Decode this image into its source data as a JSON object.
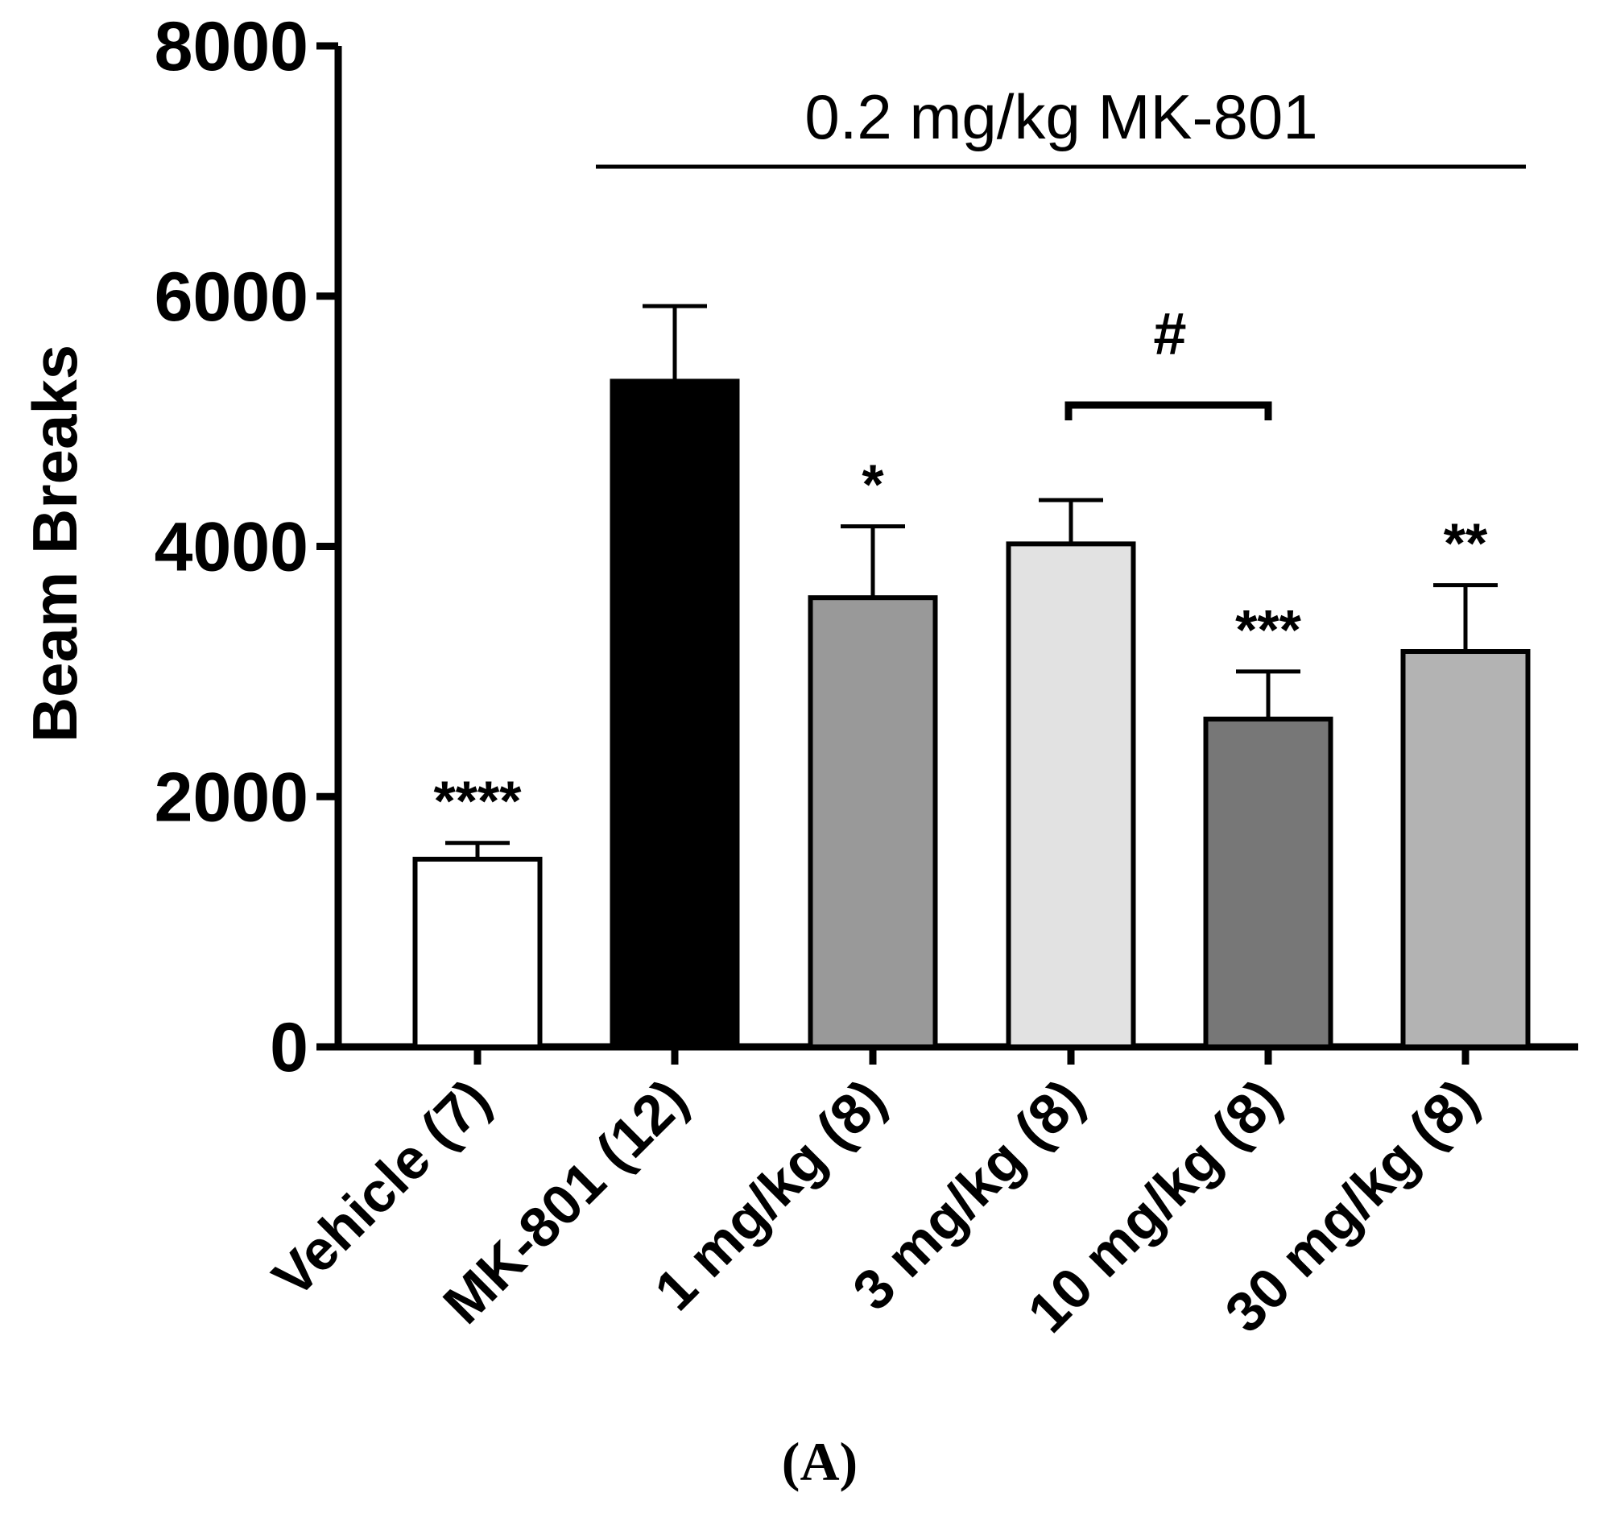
{
  "chart_data": {
    "type": "bar",
    "title": "",
    "xlabel": "",
    "ylabel": "Beam Breaks",
    "ylim": [
      0,
      8000
    ],
    "yticks": [
      "0",
      "2000",
      "4000",
      "6000",
      "8000"
    ],
    "categories": [
      "Vehicle (7)",
      "MK-801 (12)",
      "1 mg/kg (8)",
      "3 mg/kg (8)",
      "10 mg/kg (8)",
      "30 mg/kg (8)"
    ],
    "values": [
      1500,
      5320,
      3590,
      4020,
      2620,
      3160
    ],
    "errors": [
      130,
      600,
      570,
      350,
      380,
      530
    ],
    "bar_colors": [
      "#ffffff",
      "#000000",
      "#999999",
      "#e2e2e2",
      "#777777",
      "#b3b3b3"
    ],
    "significance": [
      "****",
      "",
      "*",
      "",
      "***",
      "**"
    ],
    "group_label": "0.2 mg/kg MK-801",
    "comparison_label": "#",
    "panel_label": "(A)"
  }
}
